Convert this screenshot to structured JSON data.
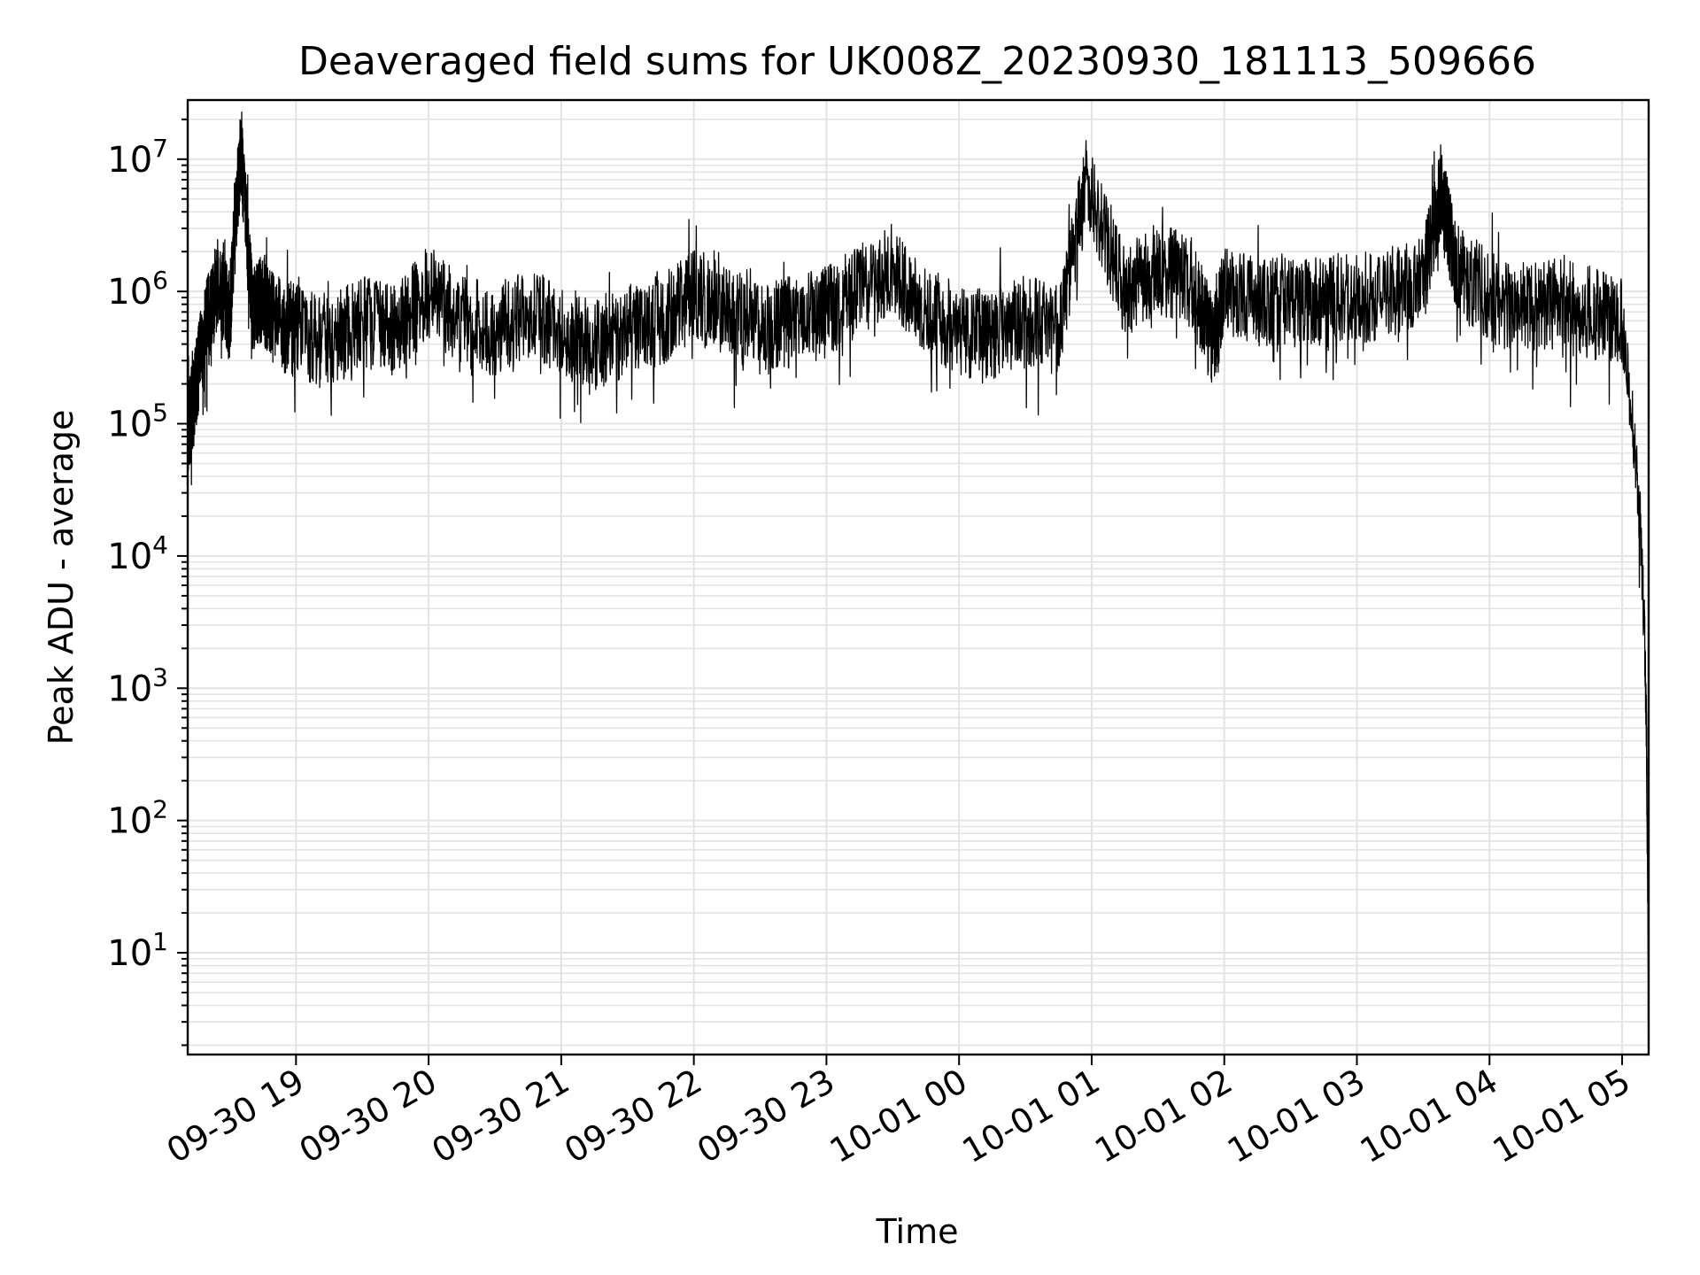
{
  "chart_data": {
    "type": "line",
    "title": "Deaveraged field sums for UK008Z_20230930_181113_509666",
    "xlabel": "Time",
    "ylabel": "Peak ADU - average",
    "yscale": "log",
    "xlim": [
      "2023-09-30 18:11",
      "2023-10-01 05:12"
    ],
    "ylim": [
      1.7,
      28000000
    ],
    "grid": "major and minor, light gray",
    "line_color": "#000000",
    "x_ticks": [
      "09-30 19",
      "09-30 20",
      "09-30 21",
      "09-30 22",
      "09-30 23",
      "10-01 00",
      "10-01 01",
      "10-01 02",
      "10-01 03",
      "10-01 04",
      "10-01 05"
    ],
    "y_ticks": [
      {
        "base": "10",
        "exp": "1"
      },
      {
        "base": "10",
        "exp": "2"
      },
      {
        "base": "10",
        "exp": "3"
      },
      {
        "base": "10",
        "exp": "4"
      },
      {
        "base": "10",
        "exp": "5"
      },
      {
        "base": "10",
        "exp": "6"
      },
      {
        "base": "10",
        "exp": "7"
      }
    ],
    "series": [
      {
        "x": [
          "2023-09-30 18:11",
          "2023-09-30 18:15",
          "2023-09-30 18:20",
          "2023-09-30 18:25",
          "2023-09-30 18:30",
          "2023-09-30 18:35",
          "2023-09-30 18:40",
          "2023-09-30 18:45",
          "2023-09-30 18:50",
          "2023-09-30 19:00",
          "2023-09-30 19:15",
          "2023-09-30 19:30",
          "2023-09-30 19:45",
          "2023-09-30 20:00",
          "2023-09-30 20:15",
          "2023-09-30 20:30",
          "2023-09-30 20:45",
          "2023-09-30 21:00",
          "2023-09-30 21:15",
          "2023-09-30 21:30",
          "2023-09-30 21:45",
          "2023-09-30 22:00",
          "2023-09-30 22:15",
          "2023-09-30 22:30",
          "2023-09-30 22:45",
          "2023-09-30 23:00",
          "2023-09-30 23:15",
          "2023-09-30 23:30",
          "2023-09-30 23:45",
          "2023-10-01 00:00",
          "2023-10-01 00:15",
          "2023-10-01 00:30",
          "2023-10-01 00:45",
          "2023-10-01 00:58",
          "2023-10-01 01:15",
          "2023-10-01 01:30",
          "2023-10-01 01:45",
          "2023-10-01 01:55",
          "2023-10-01 02:00",
          "2023-10-01 02:15",
          "2023-10-01 02:30",
          "2023-10-01 02:45",
          "2023-10-01 03:00",
          "2023-10-01 03:15",
          "2023-10-01 03:30",
          "2023-10-01 03:38",
          "2023-10-01 03:45",
          "2023-10-01 04:00",
          "2023-10-01 04:15",
          "2023-10-01 04:30",
          "2023-10-01 04:45",
          "2023-10-01 05:00",
          "2023-10-01 05:05",
          "2023-10-01 05:08",
          "2023-10-01 05:10",
          "2023-10-01 05:11",
          "2023-10-01 05:12"
        ],
        "values": [
          80000,
          220000,
          600000,
          1200000,
          700000,
          13000000,
          800000,
          900000,
          600000,
          500000,
          400000,
          600000,
          500000,
          1000000,
          600000,
          500000,
          700000,
          500000,
          400000,
          500000,
          600000,
          1000000,
          700000,
          500000,
          600000,
          700000,
          1000000,
          1500000,
          700000,
          500000,
          450000,
          600000,
          500000,
          7000000,
          1000000,
          1500000,
          1200000,
          400000,
          1000000,
          800000,
          900000,
          800000,
          900000,
          1000000,
          1200000,
          6000000,
          1500000,
          900000,
          700000,
          800000,
          700000,
          600000,
          90000,
          20000,
          3000,
          500,
          4
        ]
      }
    ]
  }
}
